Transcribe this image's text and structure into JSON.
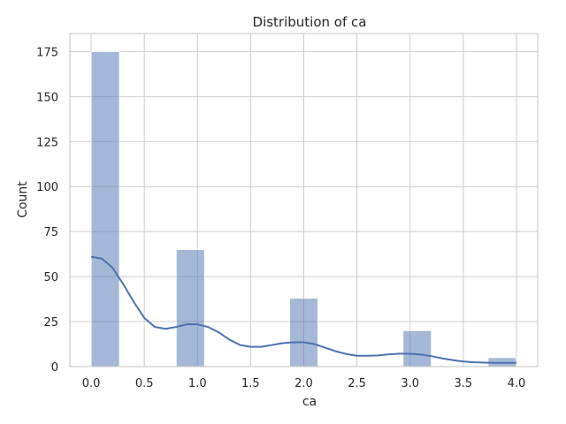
{
  "chart_data": {
    "type": "bar",
    "title": "Distribution of ca",
    "xlabel": "ca",
    "ylabel": "Count",
    "xlim": [
      -0.2,
      4.2
    ],
    "ylim": [
      0,
      185
    ],
    "x_ticks": [
      "0.0",
      "0.5",
      "1.0",
      "1.5",
      "2.0",
      "2.5",
      "3.0",
      "3.5",
      "4.0"
    ],
    "y_ticks": [
      "0",
      "25",
      "50",
      "75",
      "100",
      "125",
      "150",
      "175"
    ],
    "grid": true,
    "bins": [
      {
        "x0": 0.0,
        "x1": 0.267,
        "count": 175
      },
      {
        "x0": 0.267,
        "x1": 0.533,
        "count": 0
      },
      {
        "x0": 0.533,
        "x1": 0.8,
        "count": 0
      },
      {
        "x0": 0.8,
        "x1": 1.067,
        "count": 65
      },
      {
        "x0": 1.067,
        "x1": 1.333,
        "count": 0
      },
      {
        "x0": 1.333,
        "x1": 1.6,
        "count": 0
      },
      {
        "x0": 1.6,
        "x1": 1.867,
        "count": 0
      },
      {
        "x0": 1.867,
        "x1": 2.133,
        "count": 38
      },
      {
        "x0": 2.133,
        "x1": 2.4,
        "count": 0
      },
      {
        "x0": 2.4,
        "x1": 2.667,
        "count": 0
      },
      {
        "x0": 2.667,
        "x1": 2.933,
        "count": 0
      },
      {
        "x0": 2.933,
        "x1": 3.2,
        "count": 20
      },
      {
        "x0": 3.2,
        "x1": 3.467,
        "count": 0
      },
      {
        "x0": 3.467,
        "x1": 3.733,
        "count": 0
      },
      {
        "x0": 3.733,
        "x1": 4.0,
        "count": 5
      }
    ],
    "kde_curve": {
      "x": [
        0.0,
        0.1,
        0.2,
        0.3,
        0.4,
        0.5,
        0.6,
        0.7,
        0.8,
        0.9,
        1.0,
        1.1,
        1.2,
        1.3,
        1.4,
        1.5,
        1.6,
        1.7,
        1.8,
        1.9,
        2.0,
        2.1,
        2.2,
        2.3,
        2.4,
        2.5,
        2.6,
        2.7,
        2.8,
        2.9,
        3.0,
        3.1,
        3.2,
        3.3,
        3.4,
        3.5,
        3.6,
        3.7,
        3.8,
        3.9,
        4.0
      ],
      "y": [
        61,
        60,
        55,
        46,
        36,
        27,
        22,
        21,
        22,
        23.5,
        23.5,
        22,
        19,
        15,
        12,
        11,
        11,
        12,
        13,
        13.5,
        13.5,
        12.5,
        10.5,
        8.5,
        7,
        6,
        6,
        6.2,
        6.8,
        7.2,
        7.2,
        6.7,
        5.8,
        4.6,
        3.6,
        2.8,
        2.4,
        2.2,
        2.1,
        2.1,
        2.1
      ]
    },
    "series_color": "#4c72b0"
  }
}
